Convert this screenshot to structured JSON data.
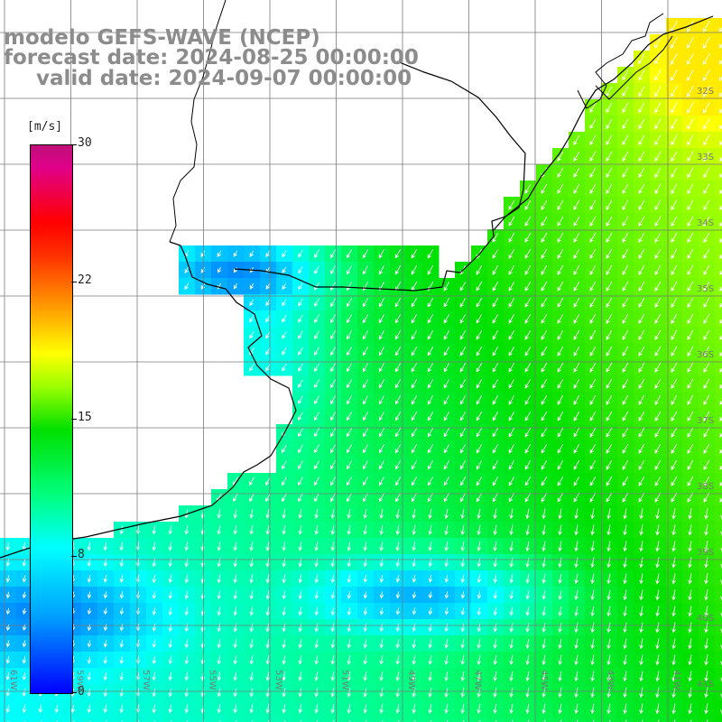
{
  "title": {
    "model": "modelo GEFS-WAVE (NCEP)",
    "forecast": "forecast date: 2024-08-25 00:00:00",
    "valid": "valid date: 2024-09-07 00:00:00"
  },
  "colorbar": {
    "units": "[m/s]",
    "ticks": [
      "30",
      "22",
      "15",
      "8",
      "0"
    ],
    "min": 0,
    "max": 30
  },
  "map": {
    "lon_labels": [
      "61W",
      "59W",
      "57W",
      "55W",
      "53W",
      "51W",
      "49W",
      "47W",
      "45W",
      "43W",
      "41W"
    ],
    "lat_labels": [
      "32S",
      "33S",
      "34S",
      "35S",
      "36S",
      "37S",
      "38S",
      "39S",
      "40S",
      "41S"
    ],
    "colors": {
      "land": "#ffffff",
      "coast": "#000000",
      "grid": "#7a7a7a",
      "arrow": "#ffffff"
    }
  }
}
